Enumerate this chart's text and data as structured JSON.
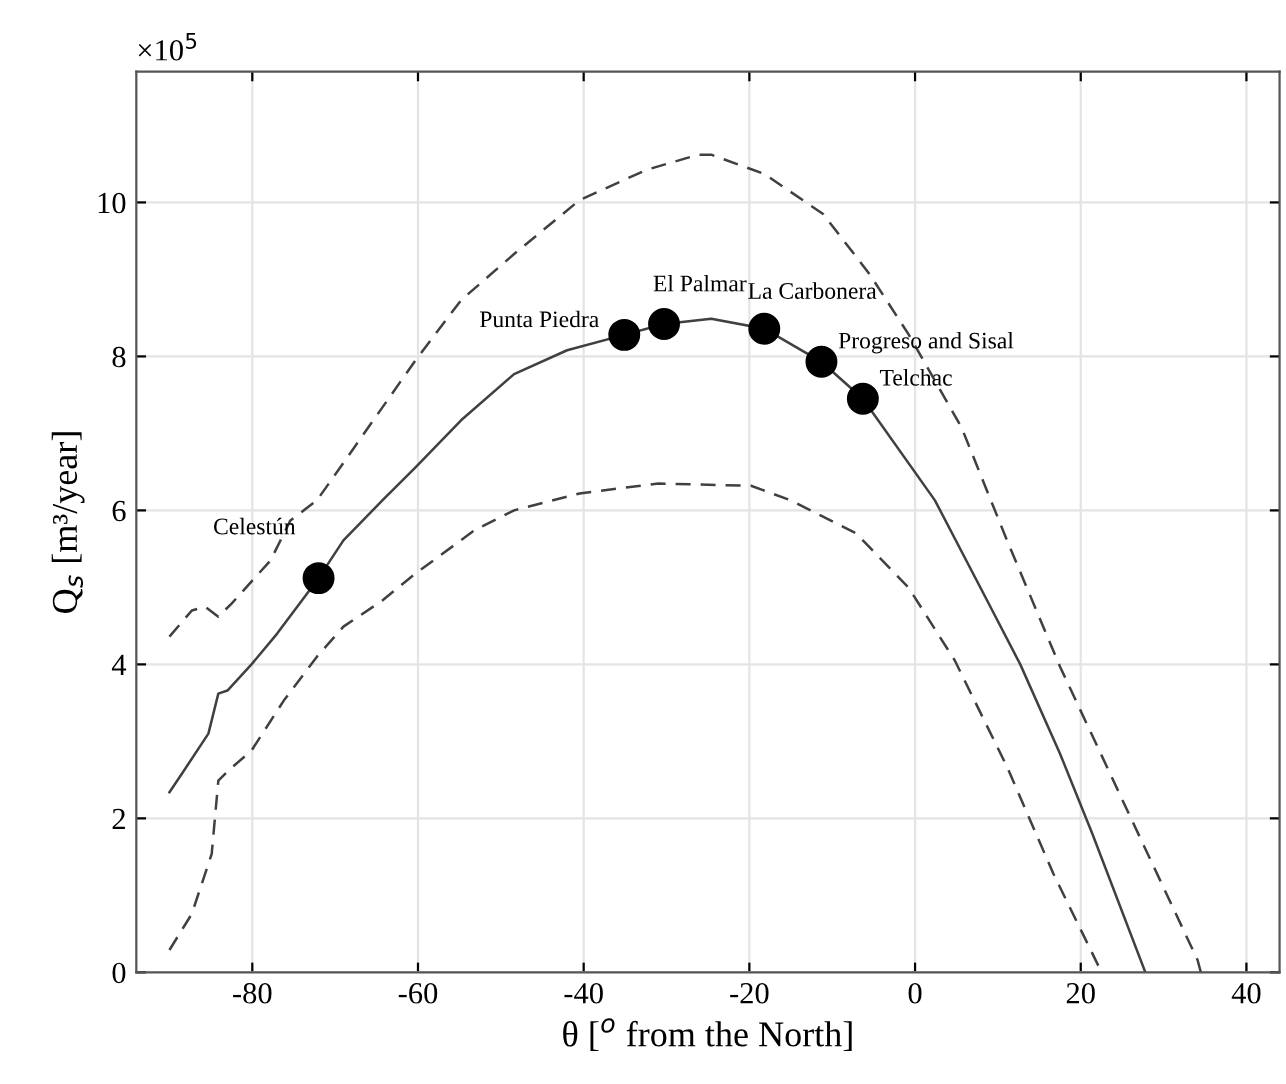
{
  "chart_data": {
    "type": "line",
    "xlabel": "θ [$^{o}$ from the North]",
    "ylabel": "Q$_{s}$ [m³/year]",
    "xlim": [
      -94,
      44
    ],
    "ylim": [
      0,
      11.7
    ],
    "xticks": [
      -80,
      -60,
      -40,
      -20,
      0,
      20,
      40
    ],
    "yticks": [
      0,
      2,
      4,
      6,
      8,
      10
    ],
    "grid": true,
    "series": [
      {
        "color": "#404040",
        "line_style": "dashed",
        "x": [
          -90.0,
          -87.3,
          -85.7,
          -84.1,
          -82.5,
          -77.8,
          -75.4,
          -72.2,
          -68.2,
          -60.3,
          -54.8,
          -48.4,
          -40.5,
          -32.5,
          -26.2,
          -24.6,
          -18.2,
          -11.1,
          -5.5,
          -0.8,
          5.6,
          11.1,
          17.5,
          26.2,
          34.1,
          34.5
        ],
        "values": [
          4.36,
          4.7,
          4.75,
          4.62,
          4.79,
          5.35,
          5.87,
          6.13,
          6.74,
          7.95,
          8.73,
          9.33,
          10.03,
          10.42,
          10.62,
          10.62,
          10.37,
          9.85,
          9.07,
          8.29,
          7.08,
          5.61,
          3.97,
          1.97,
          0.16,
          0
        ]
      },
      {
        "color": "#404040",
        "line_style": "solid",
        "x": [
          -90.0,
          -88.5,
          -85.3,
          -84.1,
          -83.0,
          -80.1,
          -77.0,
          -72.0,
          -69.0,
          -64.3,
          -60.3,
          -54.8,
          -48.4,
          -42.0,
          -35.1,
          -30.3,
          -24.6,
          -18.2,
          -11.3,
          -6.3,
          2.4,
          8.7,
          12.7,
          17.5,
          21.4,
          27.8
        ],
        "values": [
          2.34,
          2.58,
          3.1,
          3.62,
          3.66,
          4.0,
          4.4,
          5.12,
          5.61,
          6.13,
          6.56,
          7.17,
          7.77,
          8.08,
          8.28,
          8.42,
          8.49,
          8.36,
          7.93,
          7.45,
          6.13,
          4.83,
          4.0,
          2.84,
          1.8,
          0
        ]
      },
      {
        "color": "#404040",
        "line_style": "dashed",
        "x": [
          -90.0,
          -87.3,
          -84.9,
          -84.1,
          -82.9,
          -80.1,
          -76.2,
          -72.2,
          -69.0,
          -64.3,
          -60.3,
          -53.2,
          -48.4,
          -40.5,
          -31.0,
          -19.8,
          -15.0,
          -7.1,
          -0.8,
          4.8,
          11.1,
          16.7,
          22.2
        ],
        "values": [
          0.29,
          0.76,
          1.54,
          2.49,
          2.62,
          2.88,
          3.53,
          4.1,
          4.49,
          4.83,
          5.18,
          5.74,
          6.0,
          6.22,
          6.35,
          6.32,
          6.13,
          5.7,
          5.0,
          4.05,
          2.67,
          1.28,
          0.07
        ]
      },
      {
        "type": "scatter",
        "color": "#000000",
        "marker": "circle",
        "x": [
          -72.0,
          -35.1,
          -30.3,
          -18.2,
          -11.3,
          -6.3
        ],
        "values": [
          5.12,
          8.28,
          8.42,
          8.36,
          7.93,
          7.45
        ]
      }
    ],
    "annotations": [
      "×10$^{5}$",
      {
        "text": "Celestún",
        "x": -72.0,
        "y": 5.12
      },
      {
        "text": "Punta Piedra",
        "x": -35.1,
        "y": 8.28
      },
      {
        "text": "El Palmar",
        "x": -30.3,
        "y": 8.42
      },
      {
        "text": "La Carbonera",
        "x": -18.2,
        "y": 8.36
      },
      {
        "text": "Progreso and Sisal",
        "x": -11.3,
        "y": 7.93
      },
      {
        "text": "Telchac",
        "x": -6.3,
        "y": 7.45
      }
    ]
  }
}
